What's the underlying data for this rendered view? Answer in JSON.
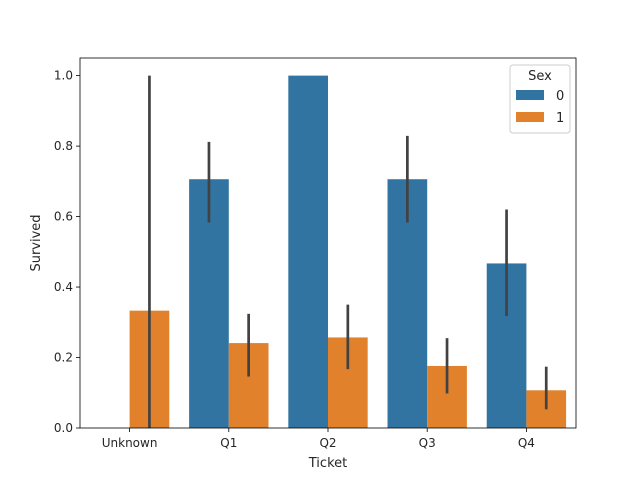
{
  "chart_data": {
    "type": "bar",
    "categories": [
      "Unknown",
      "Q1",
      "Q2",
      "Q3",
      "Q4"
    ],
    "xlabel": "Ticket",
    "ylabel": "Survived",
    "ylim": [
      0,
      1.05
    ],
    "yticks": [
      "0.0",
      "0.2",
      "0.4",
      "0.6",
      "0.8",
      "1.0"
    ],
    "grid": false,
    "legend": {
      "title": "Sex",
      "placement": "top-right"
    },
    "series": [
      {
        "name": "0",
        "color": "#3274a1",
        "values": [
          null,
          0.706,
          1.0,
          0.706,
          0.467
        ],
        "ci": [
          null,
          [
            0.583,
            0.812
          ],
          [
            1.0,
            1.0
          ],
          [
            0.583,
            0.829
          ],
          [
            0.318,
            0.62
          ]
        ]
      },
      {
        "name": "1",
        "color": "#e1812c",
        "values": [
          0.333,
          0.241,
          0.257,
          0.176,
          0.107
        ],
        "ci": [
          [
            0.0,
            1.0
          ],
          [
            0.146,
            0.324
          ],
          [
            0.167,
            0.35
          ],
          [
            0.098,
            0.255
          ],
          [
            0.053,
            0.174
          ]
        ]
      }
    ]
  }
}
